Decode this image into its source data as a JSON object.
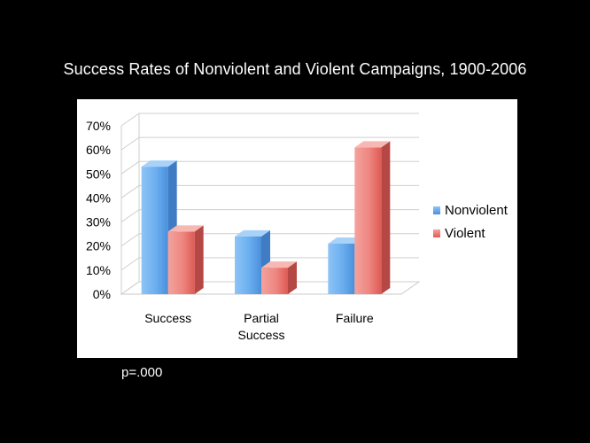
{
  "slide": {
    "title": "Success Rates of Nonviolent and Violent Campaigns, 1900-2006",
    "footnote": "p=.000"
  },
  "chart_data": {
    "type": "bar",
    "title": "",
    "xlabel": "",
    "ylabel": "",
    "categories": [
      "Success",
      [
        "Partial",
        "Success"
      ],
      "Failure"
    ],
    "series": [
      {
        "name": "Nonviolent",
        "values": [
          53,
          24,
          21
        ],
        "color": "#5aa2ec"
      },
      {
        "name": "Violent",
        "values": [
          26,
          11,
          61
        ],
        "color": "#e8605a"
      }
    ],
    "ylim": [
      0,
      70
    ],
    "yticks": [
      "0%",
      "10%",
      "20%",
      "30%",
      "40%",
      "50%",
      "60%",
      "70%"
    ],
    "grid": true,
    "three_d": true,
    "legend_position": "right"
  }
}
